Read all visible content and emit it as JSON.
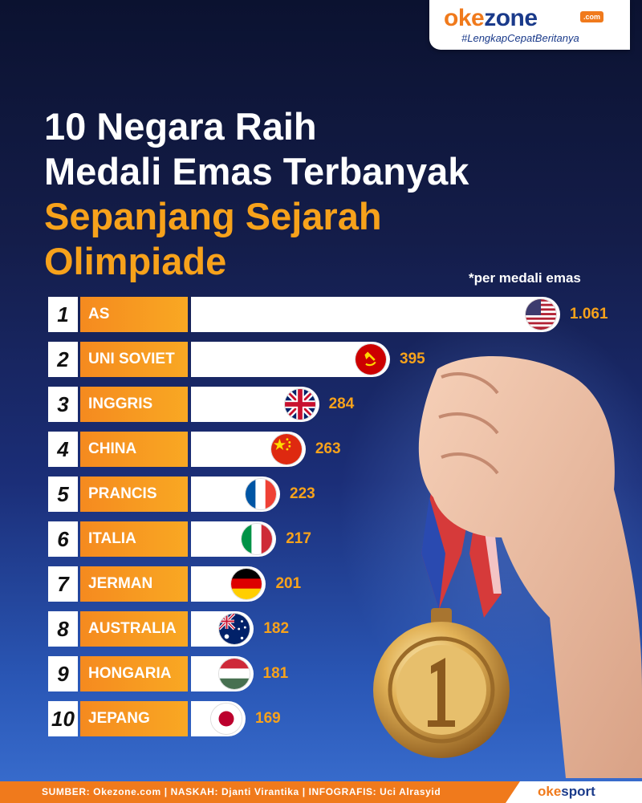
{
  "brand": {
    "logo_ok": "oke",
    "logo_zone": "zone",
    "logo_com": ".com",
    "tagline": "#LengkapCepatBeritanya"
  },
  "title_lines": [
    "10 Negara Raih",
    "Medali Emas Terbanyak"
  ],
  "subtitle_lines": [
    "Sepanjang Sejarah",
    "Olimpiade"
  ],
  "unit_note": "*per medali emas",
  "colors": {
    "accent": "#f7a21b",
    "bar": "#ffffff",
    "label_bg": "#f58a1f",
    "background": "#141d4a"
  },
  "chart_data": {
    "type": "bar",
    "orientation": "horizontal",
    "categories": [
      "AS",
      "UNI SOVIET",
      "INGGRIS",
      "CHINA",
      "PRANCIS",
      "ITALIA",
      "JERMAN",
      "AUSTRALIA",
      "HONGARIA",
      "JEPANG"
    ],
    "ranks": [
      "1",
      "2",
      "3",
      "4",
      "5",
      "6",
      "7",
      "8",
      "9",
      "10"
    ],
    "values": [
      1061,
      395,
      284,
      263,
      223,
      217,
      201,
      182,
      181,
      169
    ],
    "value_labels": [
      "1.061",
      "395",
      "284",
      "263",
      "223",
      "217",
      "201",
      "182",
      "181",
      "169"
    ],
    "flags": [
      "usa-flag-icon",
      "ussr-flag-icon",
      "uk-flag-icon",
      "china-flag-icon",
      "france-flag-icon",
      "italy-flag-icon",
      "germany-flag-icon",
      "australia-flag-icon",
      "hungary-flag-icon",
      "japan-flag-icon"
    ],
    "title": "10 Negara Raih Medali Emas Terbanyak Sepanjang Sejarah Olimpiade",
    "grid": false,
    "legend": "none"
  },
  "footer": {
    "credits": "SUMBER: Okezone.com  |  NASKAH: Djanti Virantika  |  INFOGRAFIS: Uci Alrasyid",
    "logo_ok": "oke",
    "logo_sport": "sport"
  }
}
